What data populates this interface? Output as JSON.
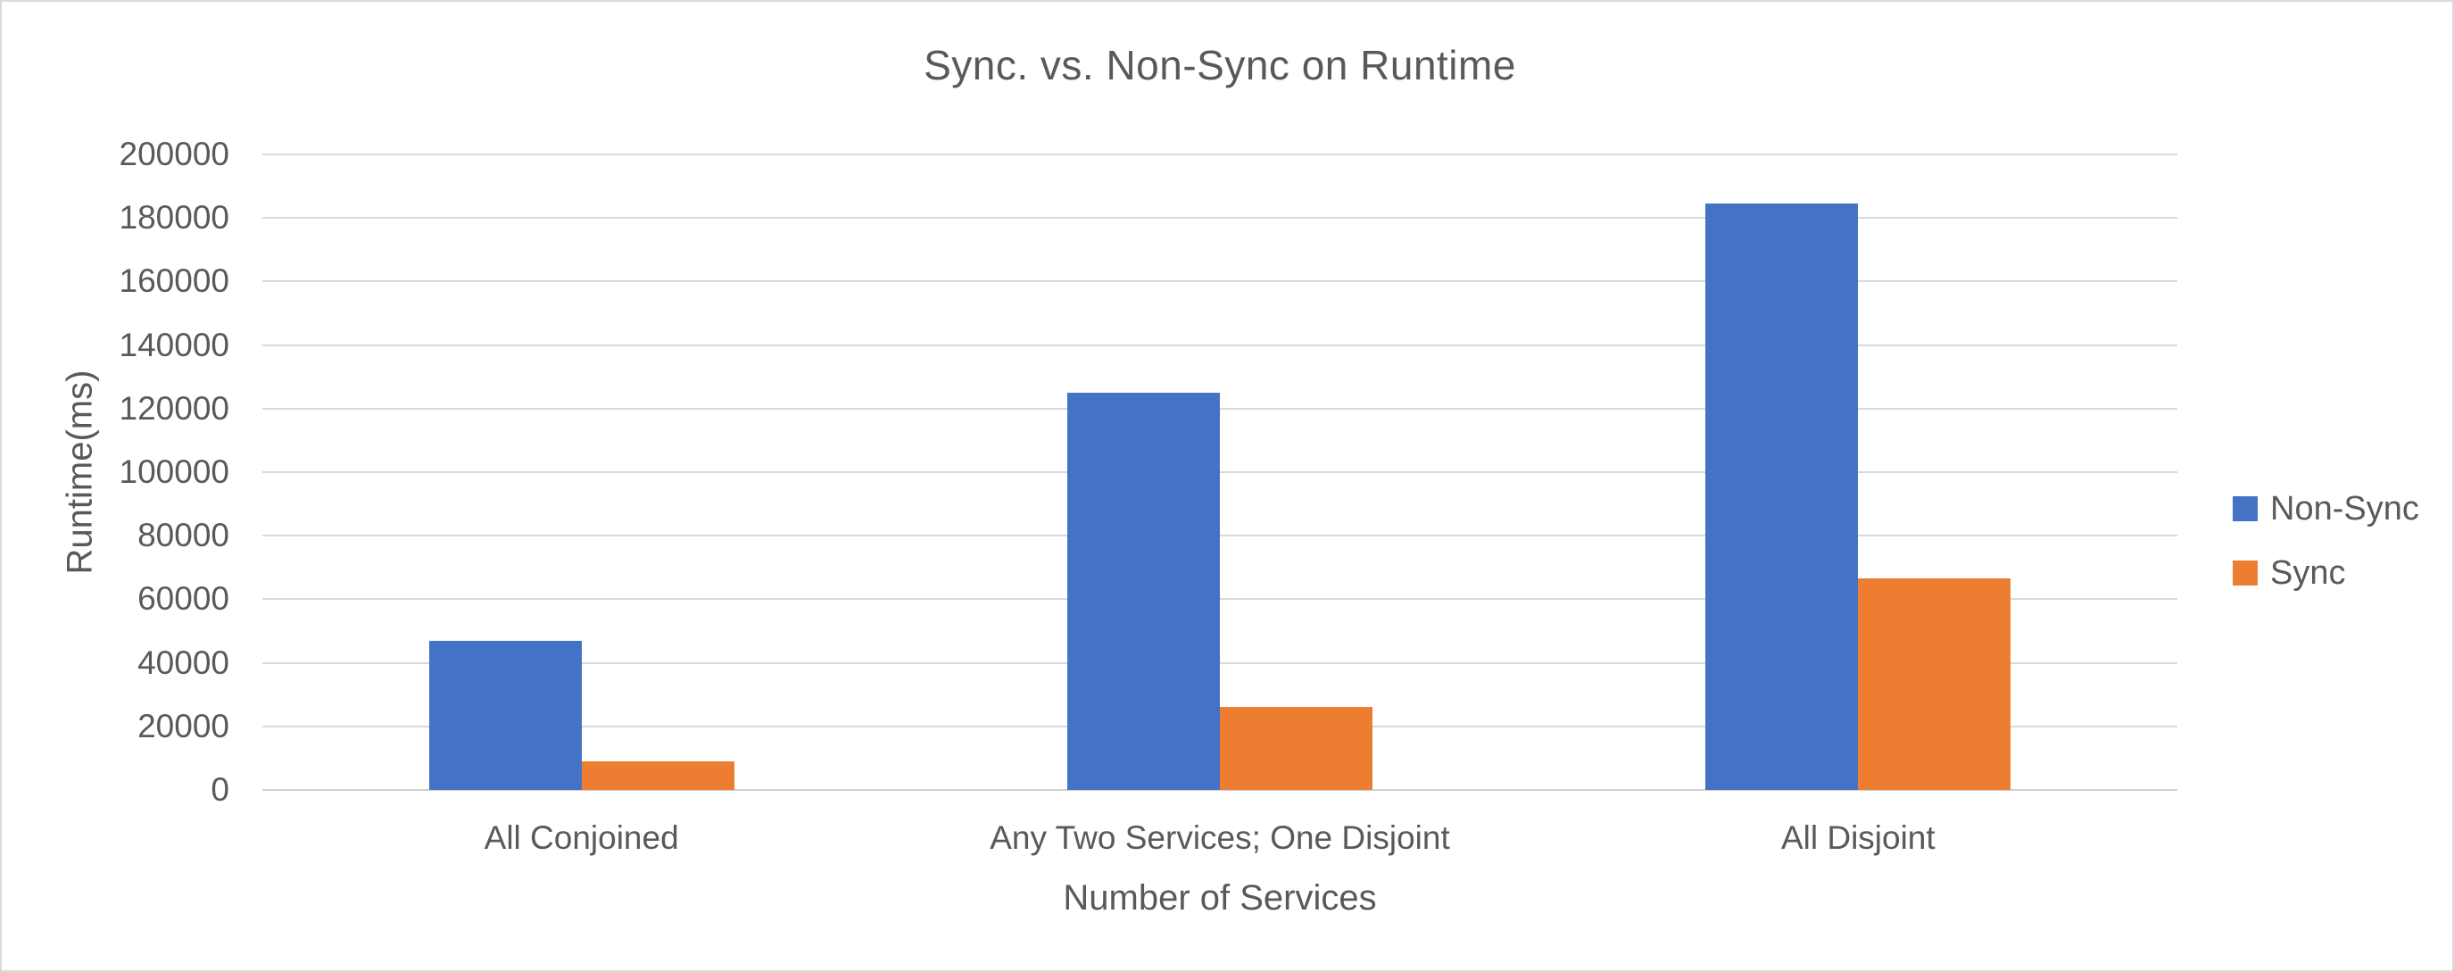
{
  "window": {
    "background": "#ffffff",
    "border_color": "#d9d9d9"
  },
  "chart_data": {
    "type": "bar",
    "title": "Sync. vs. Non-Sync on Runtime",
    "xlabel": "Number of Services",
    "ylabel": "Runtime(ms)",
    "categories": [
      "All Conjoined",
      "Any Two Services; One Disjoint",
      "All Disjoint"
    ],
    "series": [
      {
        "name": "Non-Sync",
        "color": "#4472C4",
        "values": [
          47000,
          125000,
          184500
        ]
      },
      {
        "name": "Sync",
        "color": "#ED7D31",
        "values": [
          9000,
          26000,
          66500
        ]
      }
    ],
    "ylim": [
      0,
      200000
    ],
    "ytick_step": 20000,
    "ytick_labels": [
      "0",
      "20000",
      "40000",
      "60000",
      "80000",
      "100000",
      "120000",
      "140000",
      "160000",
      "180000",
      "200000"
    ],
    "grid": true,
    "legend_position": "right",
    "text_color": "#595959",
    "gridline_color": "#d9d9d9"
  }
}
